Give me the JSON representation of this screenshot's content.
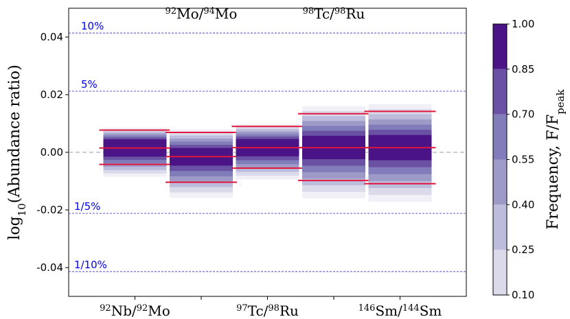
{
  "chart_data": {
    "type": "box-density",
    "ylabel": {
      "prefix": "log",
      "sub": "10",
      "rest": "(Abundance ratio)"
    },
    "ylim": [
      -0.05,
      0.05
    ],
    "yticks": [
      "0.04",
      "0.02",
      "0.00",
      "-0.02",
      "-0.04"
    ],
    "yticks_values": [
      0.04,
      0.02,
      0.0,
      -0.02,
      -0.04
    ],
    "reference_lines": [
      {
        "label": "10%",
        "value": 0.0414
      },
      {
        "label": "5%",
        "value": 0.0212
      },
      {
        "label": "1/5%",
        "value": -0.0212
      },
      {
        "label": "1/10%",
        "value": -0.0414
      }
    ],
    "categories": [
      {
        "top": "",
        "bottom": {
          "sup1": "92",
          "a": "Nb/",
          "sup2": "92",
          "b": "Mo"
        },
        "side": "bottom",
        "q_upper": 0.0077,
        "median": 0.0015,
        "q_lower": -0.0042,
        "extent": [
          -0.0085,
          0.0085
        ]
      },
      {
        "side": "top",
        "top": {
          "sup1": "92",
          "a": "Mo/",
          "sup2": "94",
          "b": "Mo"
        },
        "q_upper": 0.0069,
        "median": -0.0015,
        "q_lower": -0.0104,
        "extent": [
          -0.0158,
          0.008
        ]
      },
      {
        "side": "bottom",
        "bottom": {
          "sup1": "97",
          "a": "Tc/",
          "sup2": "98",
          "b": "Ru"
        },
        "q_upper": 0.009,
        "median": 0.0016,
        "q_lower": -0.0055,
        "extent": [
          -0.0095,
          0.0098
        ]
      },
      {
        "side": "top",
        "top": {
          "sup1": "98",
          "a": "Tc/",
          "sup2": "98",
          "b": "Ru"
        },
        "q_upper": 0.0134,
        "median": 0.0016,
        "q_lower": -0.0098,
        "extent": [
          -0.016,
          0.016
        ]
      },
      {
        "side": "bottom",
        "bottom": {
          "sup1": "146",
          "a": "Sm/",
          "sup2": "144",
          "b": "Sm"
        },
        "q_upper": 0.0142,
        "median": 0.0016,
        "q_lower": -0.0109,
        "extent": [
          -0.0172,
          0.0168
        ]
      }
    ],
    "colorbar": {
      "label": "Frequency, F/F",
      "label_sub": "peak",
      "ticks": [
        "1.00",
        "0.85",
        "0.70",
        "0.55",
        "0.40",
        "0.25",
        "0.10"
      ],
      "tick_values": [
        1.0,
        0.85,
        0.7,
        0.55,
        0.4,
        0.25,
        0.1
      ],
      "colors": [
        "#f2f0f7",
        "#dadaeb",
        "#bcbddc",
        "#9e9ac8",
        "#807dba",
        "#6a51a3",
        "#4a1486"
      ]
    },
    "colors": {
      "median_line": "#e0143c",
      "reference_line": "#4444cc",
      "reference_text": "#0000ee",
      "zero_line": "#9999aa"
    }
  }
}
